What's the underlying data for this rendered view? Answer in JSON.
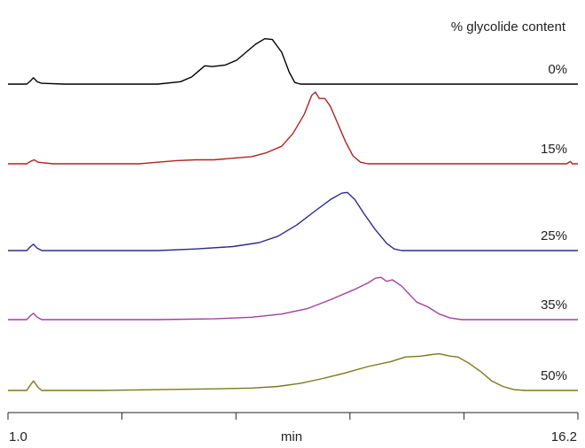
{
  "chart_data": {
    "type": "line",
    "title": "",
    "legend_title": "% glycolide content",
    "xlabel": "min",
    "xlim": [
      1.0,
      16.2
    ],
    "x_tick_labels": [
      "1.0",
      "16.2"
    ],
    "x_ticks": [
      1.0,
      4.04,
      7.08,
      10.12,
      13.16,
      16.2
    ],
    "grid": false,
    "series": [
      {
        "name": "0%",
        "color": "#000000",
        "points": [
          [
            1.0,
            0
          ],
          [
            1.5,
            0
          ],
          [
            1.6,
            0.04
          ],
          [
            1.68,
            0.08
          ],
          [
            1.78,
            0.03
          ],
          [
            1.9,
            0.01
          ],
          [
            2.5,
            0
          ],
          [
            5.0,
            0
          ],
          [
            5.6,
            0.03
          ],
          [
            5.9,
            0.09
          ],
          [
            6.1,
            0.17
          ],
          [
            6.25,
            0.23
          ],
          [
            6.45,
            0.22
          ],
          [
            6.8,
            0.24
          ],
          [
            7.1,
            0.3
          ],
          [
            7.35,
            0.4
          ],
          [
            7.6,
            0.5
          ],
          [
            7.85,
            0.57
          ],
          [
            8.05,
            0.56
          ],
          [
            8.3,
            0.4
          ],
          [
            8.5,
            0.15
          ],
          [
            8.65,
            0.02
          ],
          [
            8.8,
            0
          ],
          [
            16.2,
            0
          ]
        ]
      },
      {
        "name": "15%",
        "color": "#b22222",
        "points": [
          [
            1.0,
            0
          ],
          [
            1.5,
            0
          ],
          [
            1.6,
            0.03
          ],
          [
            1.7,
            0.05
          ],
          [
            1.8,
            0.02
          ],
          [
            2.2,
            0
          ],
          [
            4.5,
            0
          ],
          [
            5.0,
            0.02
          ],
          [
            5.5,
            0.04
          ],
          [
            6.0,
            0.05
          ],
          [
            6.5,
            0.05
          ],
          [
            7.0,
            0.07
          ],
          [
            7.5,
            0.09
          ],
          [
            7.9,
            0.14
          ],
          [
            8.3,
            0.22
          ],
          [
            8.6,
            0.38
          ],
          [
            8.9,
            0.62
          ],
          [
            9.1,
            0.86
          ],
          [
            9.2,
            0.9
          ],
          [
            9.3,
            0.82
          ],
          [
            9.45,
            0.82
          ],
          [
            9.6,
            0.72
          ],
          [
            9.8,
            0.5
          ],
          [
            10.0,
            0.28
          ],
          [
            10.2,
            0.1
          ],
          [
            10.4,
            0.02
          ],
          [
            10.6,
            0
          ],
          [
            15.9,
            0
          ],
          [
            16.0,
            0.03
          ],
          [
            16.05,
            0
          ],
          [
            16.2,
            0
          ]
        ]
      },
      {
        "name": "25%",
        "color": "#2b2b8f",
        "points": [
          [
            1.0,
            0
          ],
          [
            1.5,
            0
          ],
          [
            1.6,
            0.05
          ],
          [
            1.68,
            0.08
          ],
          [
            1.78,
            0.03
          ],
          [
            1.9,
            0
          ],
          [
            5.0,
            0
          ],
          [
            6.0,
            0.02
          ],
          [
            7.0,
            0.05
          ],
          [
            7.7,
            0.1
          ],
          [
            8.2,
            0.18
          ],
          [
            8.7,
            0.32
          ],
          [
            9.2,
            0.5
          ],
          [
            9.6,
            0.64
          ],
          [
            9.9,
            0.72
          ],
          [
            10.05,
            0.73
          ],
          [
            10.25,
            0.64
          ],
          [
            10.5,
            0.46
          ],
          [
            10.8,
            0.26
          ],
          [
            11.1,
            0.09
          ],
          [
            11.3,
            0.02
          ],
          [
            11.5,
            0
          ],
          [
            16.2,
            0
          ]
        ]
      },
      {
        "name": "35%",
        "color": "#a040a0",
        "points": [
          [
            1.0,
            0
          ],
          [
            1.5,
            0
          ],
          [
            1.6,
            0.05
          ],
          [
            1.68,
            0.08
          ],
          [
            1.78,
            0.03
          ],
          [
            1.9,
            0
          ],
          [
            5.0,
            0
          ],
          [
            6.5,
            0.01
          ],
          [
            7.5,
            0.03
          ],
          [
            8.3,
            0.07
          ],
          [
            9.0,
            0.14
          ],
          [
            9.6,
            0.25
          ],
          [
            10.2,
            0.37
          ],
          [
            10.6,
            0.46
          ],
          [
            10.8,
            0.52
          ],
          [
            10.95,
            0.53
          ],
          [
            11.1,
            0.48
          ],
          [
            11.25,
            0.5
          ],
          [
            11.5,
            0.42
          ],
          [
            11.7,
            0.32
          ],
          [
            11.9,
            0.22
          ],
          [
            12.2,
            0.16
          ],
          [
            12.5,
            0.07
          ],
          [
            12.8,
            0.02
          ],
          [
            13.1,
            0
          ],
          [
            16.2,
            0
          ]
        ]
      },
      {
        "name": "50%",
        "color": "#7a7a1a",
        "points": [
          [
            1.0,
            0
          ],
          [
            1.5,
            0
          ],
          [
            1.6,
            0.07
          ],
          [
            1.68,
            0.12
          ],
          [
            1.8,
            0.04
          ],
          [
            1.9,
            0
          ],
          [
            3.5,
            0
          ],
          [
            5.0,
            0.01
          ],
          [
            6.5,
            0.02
          ],
          [
            7.5,
            0.03
          ],
          [
            8.2,
            0.05
          ],
          [
            8.8,
            0.09
          ],
          [
            9.4,
            0.15
          ],
          [
            10.0,
            0.22
          ],
          [
            10.6,
            0.3
          ],
          [
            11.2,
            0.36
          ],
          [
            11.6,
            0.42
          ],
          [
            12.0,
            0.43
          ],
          [
            12.3,
            0.45
          ],
          [
            12.5,
            0.46
          ],
          [
            12.8,
            0.43
          ],
          [
            13.0,
            0.42
          ],
          [
            13.3,
            0.34
          ],
          [
            13.6,
            0.24
          ],
          [
            13.9,
            0.12
          ],
          [
            14.2,
            0.05
          ],
          [
            14.5,
            0.01
          ],
          [
            14.8,
            0
          ],
          [
            16.2,
            0
          ]
        ]
      }
    ]
  }
}
